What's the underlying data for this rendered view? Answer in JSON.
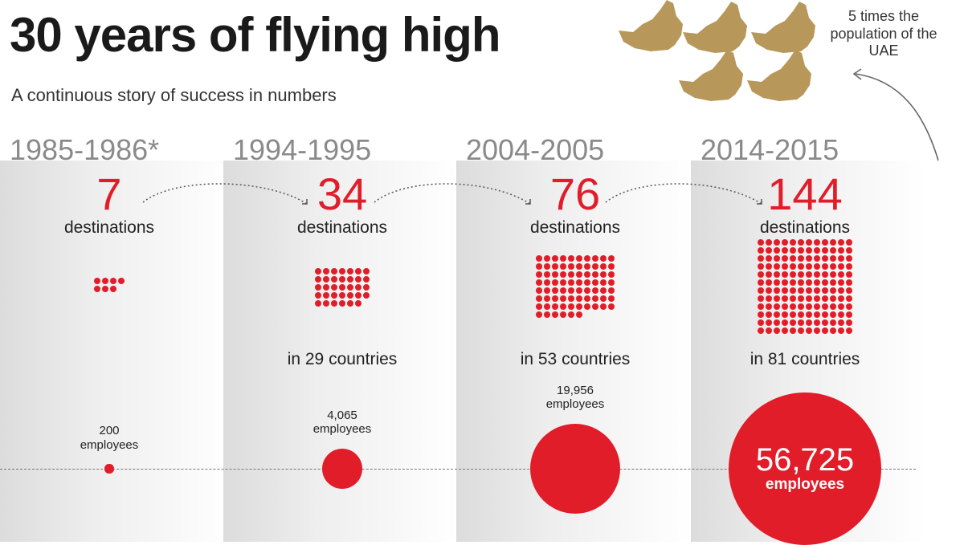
{
  "title": "30 years of flying high",
  "subtitle": "A continuous story of success in numbers",
  "uae_note": "5 times the population of the UAE",
  "colors": {
    "accent": "#e11d2a",
    "year": "#8a8a8a",
    "map": "#b8985a"
  },
  "chart_data": {
    "type": "bubble",
    "categories": [
      "1985-1986*",
      "1994-1995",
      "2004-2005",
      "2014-2015"
    ],
    "destinations": [
      7,
      34,
      76,
      144
    ],
    "destinations_label": "destinations",
    "countries": [
      null,
      29,
      53,
      81
    ],
    "countries_text": [
      "",
      "in 29 countries",
      "in 53 countries",
      "in 81 countries"
    ],
    "employees": [
      200,
      4065,
      19956,
      56725
    ],
    "employees_text": [
      "200",
      "4,065",
      "19,956",
      "56,725"
    ],
    "employees_label": "employees"
  }
}
